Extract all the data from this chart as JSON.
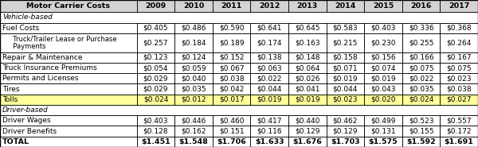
{
  "title": "Motor Carrier Costs",
  "years": [
    "2009",
    "2010",
    "2011",
    "2012",
    "2013",
    "2014",
    "2015",
    "2016",
    "2017"
  ],
  "rows": [
    {
      "label": "Vehicle-based",
      "type": "section_header",
      "values": []
    },
    {
      "label": "Fuel Costs",
      "type": "normal",
      "indent": 0,
      "values": [
        "$0.405",
        "$0.486",
        "$0.590",
        "$0.641",
        "$0.645",
        "$0.583",
        "$0.403",
        "$0.336",
        "$0.368"
      ]
    },
    {
      "label": "  Truck/Trailer Lease or Purchase\n  Payments",
      "type": "indented",
      "indent": 1,
      "values": [
        "$0.257",
        "$0.184",
        "$0.189",
        "$0.174",
        "$0.163",
        "$0.215",
        "$0.230",
        "$0.255",
        "$0.264"
      ]
    },
    {
      "label": "Repair & Maintenance",
      "type": "normal",
      "indent": 0,
      "values": [
        "$0.123",
        "$0.124",
        "$0.152",
        "$0.138",
        "$0.148",
        "$0.158",
        "$0.156",
        "$0.166",
        "$0.167"
      ]
    },
    {
      "label": "Truck Insurance Premiums",
      "type": "normal",
      "indent": 0,
      "values": [
        "$0.054",
        "$0.059",
        "$0.067",
        "$0.063",
        "$0.064",
        "$0.071",
        "$0.074",
        "$0.075",
        "$0.075"
      ]
    },
    {
      "label": "Permits and Licenses",
      "type": "normal",
      "indent": 0,
      "values": [
        "$0.029",
        "$0.040",
        "$0.038",
        "$0.022",
        "$0.026",
        "$0.019",
        "$0.019",
        "$0.022",
        "$0.023"
      ]
    },
    {
      "label": "Tires",
      "type": "normal",
      "indent": 0,
      "values": [
        "$0.029",
        "$0.035",
        "$0.042",
        "$0.044",
        "$0.041",
        "$0.044",
        "$0.043",
        "$0.035",
        "$0.038"
      ]
    },
    {
      "label": "Tolls",
      "type": "highlight",
      "indent": 0,
      "values": [
        "$0.024",
        "$0.012",
        "$0.017",
        "$0.019",
        "$0.019",
        "$0.023",
        "$0.020",
        "$0.024",
        "$0.027"
      ]
    },
    {
      "label": "Driver-based",
      "type": "section_header",
      "values": []
    },
    {
      "label": "Driver Wages",
      "type": "normal",
      "indent": 0,
      "values": [
        "$0.403",
        "$0.446",
        "$0.460",
        "$0.417",
        "$0.440",
        "$0.462",
        "$0.499",
        "$0.523",
        "$0.557"
      ]
    },
    {
      "label": "Driver Benefits",
      "type": "normal",
      "indent": 0,
      "values": [
        "$0.128",
        "$0.162",
        "$0.151",
        "$0.116",
        "$0.129",
        "$0.129",
        "$0.131",
        "$0.155",
        "$0.172"
      ]
    },
    {
      "label": "TOTAL",
      "type": "total",
      "indent": 0,
      "values": [
        "$1.451",
        "$1.548",
        "$1.706",
        "$1.633",
        "$1.676",
        "$1.703",
        "$1.575",
        "$1.592",
        "$1.691"
      ]
    }
  ],
  "highlight_row_label": "Tolls",
  "col_header_bg": "#D3D3D3",
  "highlight_bg": "#FFFF99",
  "normal_bg": "#FFFFFF",
  "section_bg": "#FFFFFF",
  "total_bg": "#FFFFFF",
  "border_color": "#000000",
  "header_bg": "#C0C0C0"
}
